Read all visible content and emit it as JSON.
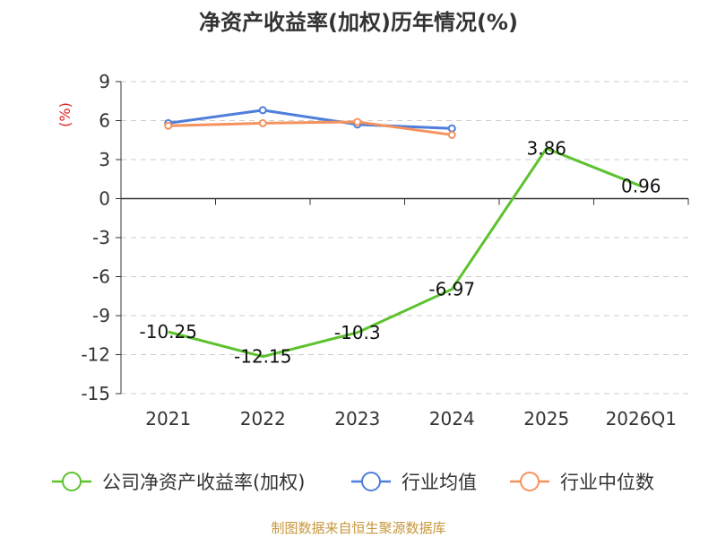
{
  "chart_data": {
    "type": "line",
    "title": "净资产收益率(加权)历年情况(%)",
    "ylabel": "(%)",
    "xlabel": "",
    "categories": [
      "2021",
      "2022",
      "2023",
      "2024",
      "2025",
      "2026Q1"
    ],
    "ylim": [
      -15,
      9
    ],
    "yticks": [
      9,
      6,
      3,
      0,
      -3,
      -6,
      -9,
      -12,
      -15
    ],
    "grid": true,
    "legend_position": "bottom",
    "series": [
      {
        "name": "公司净资产收益率(加权)",
        "color": "#5cc22e",
        "values": [
          -10.25,
          -12.15,
          -10.3,
          -6.97,
          3.86,
          0.96
        ],
        "labels": [
          "-10.25",
          "-12.15",
          "-10.3",
          "-6.97",
          "3.86",
          "0.96"
        ],
        "show_labels": true
      },
      {
        "name": "行业均值",
        "color": "#4f7ddb",
        "values": [
          5.8,
          6.8,
          5.7,
          5.4,
          null,
          null
        ],
        "show_labels": false
      },
      {
        "name": "行业中位数",
        "color": "#f5925e",
        "values": [
          5.6,
          5.8,
          5.9,
          4.9,
          null,
          null
        ],
        "show_labels": false
      }
    ]
  },
  "source": "制图数据来自恒生聚源数据库"
}
